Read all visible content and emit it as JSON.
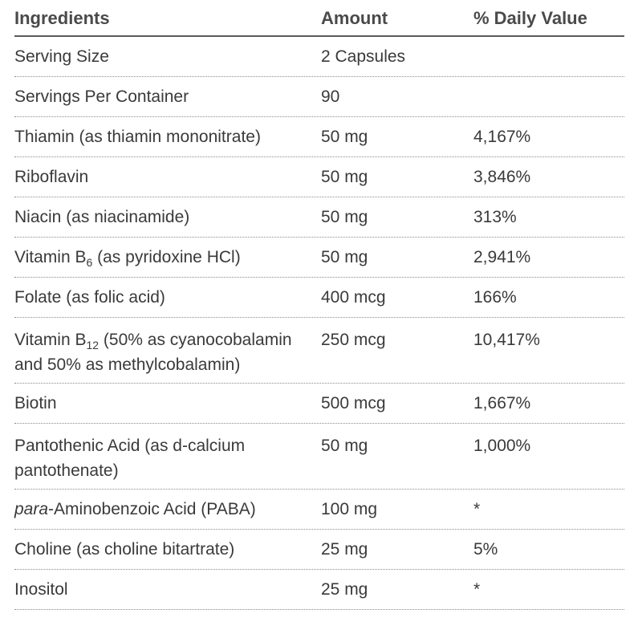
{
  "table": {
    "headers": {
      "ingredient": "Ingredients",
      "amount": "Amount",
      "daily_value": "% Daily Value"
    },
    "rows": [
      {
        "ingredient": "Serving Size",
        "amount": "2 Capsules",
        "daily_value": ""
      },
      {
        "ingredient": "Servings Per Container",
        "amount": "90",
        "daily_value": ""
      },
      {
        "ingredient": "Thiamin (as thiamin mononitrate)",
        "amount": "50 mg",
        "daily_value": "4,167%"
      },
      {
        "ingredient": "Riboflavin",
        "amount": "50 mg",
        "daily_value": "3,846%"
      },
      {
        "ingredient": "Niacin (as niacinamide)",
        "amount": "50 mg",
        "daily_value": "313%"
      },
      {
        "ingredient_prefix": "Vitamin B",
        "ingredient_sub": "6",
        "ingredient_suffix": " (as pyridoxine HCl)",
        "amount": "50 mg",
        "daily_value": "2,941%"
      },
      {
        "ingredient": "Folate (as folic acid)",
        "amount": "400 mcg",
        "daily_value": "166%"
      },
      {
        "ingredient_prefix": "Vitamin B",
        "ingredient_sub": "12",
        "ingredient_suffix": " (50% as cyanocobalamin and 50% as methylcobalamin)",
        "amount": "250 mcg",
        "daily_value": "10,417%"
      },
      {
        "ingredient": "Biotin",
        "amount": "500 mcg",
        "daily_value": "1,667%"
      },
      {
        "ingredient": "Pantothenic Acid (as d-calcium pantothenate)",
        "amount": "50 mg",
        "daily_value": "1,000%"
      },
      {
        "ingredient_italic": "para",
        "ingredient_suffix": "-Aminobenzoic Acid (PABA)",
        "amount": "100 mg",
        "daily_value": "*"
      },
      {
        "ingredient": "Choline (as choline bitartrate)",
        "amount": "25 mg",
        "daily_value": "5%"
      },
      {
        "ingredient": "Inositol",
        "amount": "25 mg",
        "daily_value": "*"
      }
    ]
  }
}
